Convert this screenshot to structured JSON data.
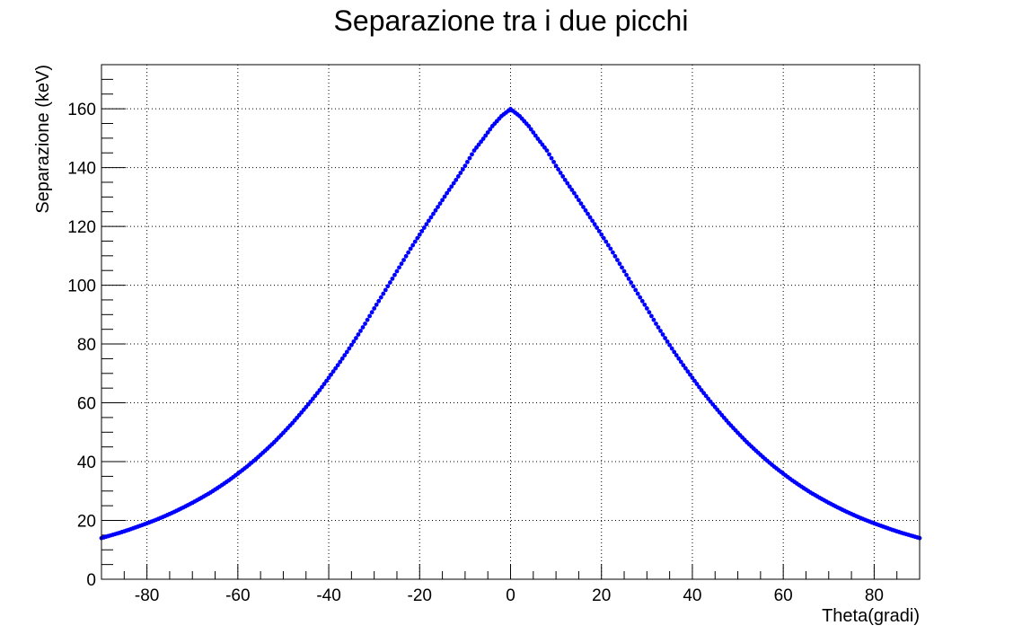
{
  "chart_data": {
    "type": "scatter",
    "title": "Separazione tra i due picchi",
    "xlabel": "Theta(gradi)",
    "ylabel": "Separazione (keV)",
    "xlim": [
      -90,
      90
    ],
    "ylim": [
      0,
      175
    ],
    "x_ticks": [
      -80,
      -60,
      -40,
      -20,
      0,
      20,
      40,
      60,
      80
    ],
    "y_ticks": [
      0,
      20,
      40,
      60,
      80,
      100,
      120,
      140,
      160
    ],
    "grid": true,
    "legend": "none",
    "marker_color": "#0000ff",
    "series": [
      {
        "x": [
          -90,
          -88,
          -86,
          -84,
          -82,
          -80,
          -78,
          -76,
          -74,
          -72,
          -70,
          -68,
          -66,
          -64,
          -62,
          -60,
          -58,
          -56,
          -54,
          -52,
          -50,
          -48,
          -46,
          -44,
          -42,
          -40,
          -38,
          -36,
          -34,
          -32,
          -30,
          -28,
          -26,
          -24,
          -22,
          -20,
          -18,
          -16,
          -14,
          -12,
          -10,
          -8,
          -6,
          -4,
          -2,
          0,
          2,
          4,
          6,
          8,
          10,
          12,
          14,
          16,
          18,
          20,
          22,
          24,
          26,
          28,
          30,
          32,
          34,
          36,
          38,
          40,
          42,
          44,
          46,
          48,
          50,
          52,
          54,
          56,
          58,
          60,
          62,
          64,
          66,
          68,
          70,
          72,
          74,
          76,
          78,
          80,
          82,
          84,
          86,
          88,
          90
        ],
        "y": [
          14.0,
          14.9,
          15.8,
          16.8,
          17.9,
          19.0,
          20.2,
          21.5,
          22.9,
          24.4,
          26.0,
          27.7,
          29.5,
          31.5,
          33.6,
          35.9,
          38.3,
          40.9,
          43.7,
          46.6,
          49.8,
          53.1,
          56.7,
          60.4,
          64.3,
          68.5,
          72.8,
          77.3,
          82.0,
          86.9,
          92.1,
          97.1,
          102.2,
          107.3,
          112.4,
          117.2,
          121.9,
          126.6,
          131.3,
          135.8,
          140.6,
          145.8,
          149.8,
          154.1,
          157.5,
          159.9,
          157.5,
          154.1,
          149.8,
          145.8,
          140.6,
          135.8,
          131.3,
          126.6,
          121.9,
          117.2,
          112.4,
          107.3,
          102.2,
          97.1,
          92.1,
          86.9,
          82.0,
          77.3,
          72.8,
          68.5,
          64.3,
          60.4,
          56.7,
          53.1,
          49.8,
          46.6,
          43.7,
          40.9,
          38.3,
          35.9,
          33.6,
          31.5,
          29.5,
          27.7,
          26.0,
          24.4,
          22.9,
          21.5,
          20.2,
          19.0,
          17.9,
          16.8,
          15.8,
          14.9,
          14.0
        ]
      }
    ]
  }
}
